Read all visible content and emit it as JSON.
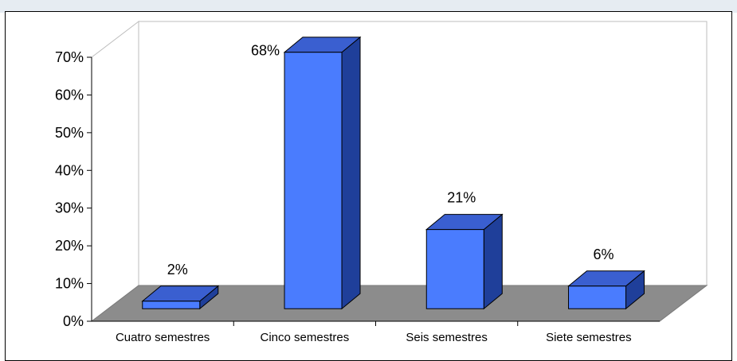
{
  "chart_data": {
    "type": "bar",
    "categories": [
      "Cuatro semestres",
      "Cinco semestres",
      "Seis semestres",
      "Siete semestres"
    ],
    "values": [
      2,
      68,
      21,
      6
    ],
    "data_labels": [
      "2%",
      "68%",
      "21%",
      "6%"
    ],
    "yticks": [
      "0%",
      "10%",
      "20%",
      "30%",
      "40%",
      "50%",
      "60%",
      "70%"
    ],
    "ylim": [
      0,
      70
    ],
    "title": "",
    "xlabel": "",
    "ylabel": "",
    "style": "3d",
    "colors": {
      "bar_front": "#4a7cfe",
      "bar_top": "#3a5fd0",
      "bar_side": "#1f3f9a",
      "floor": "#8c8c8c",
      "gridline": "#c8c8c8"
    }
  }
}
